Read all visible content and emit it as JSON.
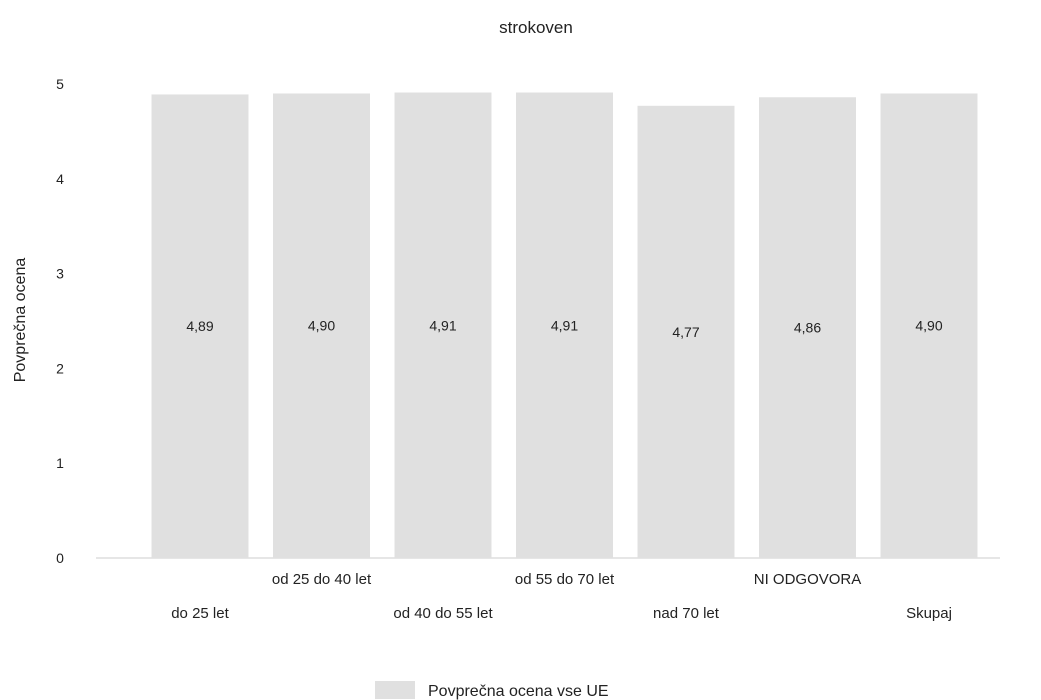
{
  "chart_data": {
    "type": "bar",
    "title": "strokoven",
    "xlabel": "",
    "ylabel": "Povprečna ocena",
    "ylim": [
      0,
      5
    ],
    "yticks": [
      0,
      1,
      2,
      3,
      4,
      5
    ],
    "grid": false,
    "legend_position": "bottom",
    "bar_color": "#e0e0e0",
    "categories": [
      "do 25 let",
      "od 25 do 40 let",
      "od 40 do 55 let",
      "od 55 do 70 let",
      "nad 70 let",
      "NI ODGOVORA",
      "Skupaj"
    ],
    "series": [
      {
        "name": "Povprečna ocena vse UE",
        "values": [
          4.89,
          4.9,
          4.91,
          4.91,
          4.77,
          4.86,
          4.9
        ],
        "labels": [
          "4,89",
          "4,90",
          "4,91",
          "4,91",
          "4,77",
          "4,86",
          "4,90"
        ]
      }
    ]
  }
}
